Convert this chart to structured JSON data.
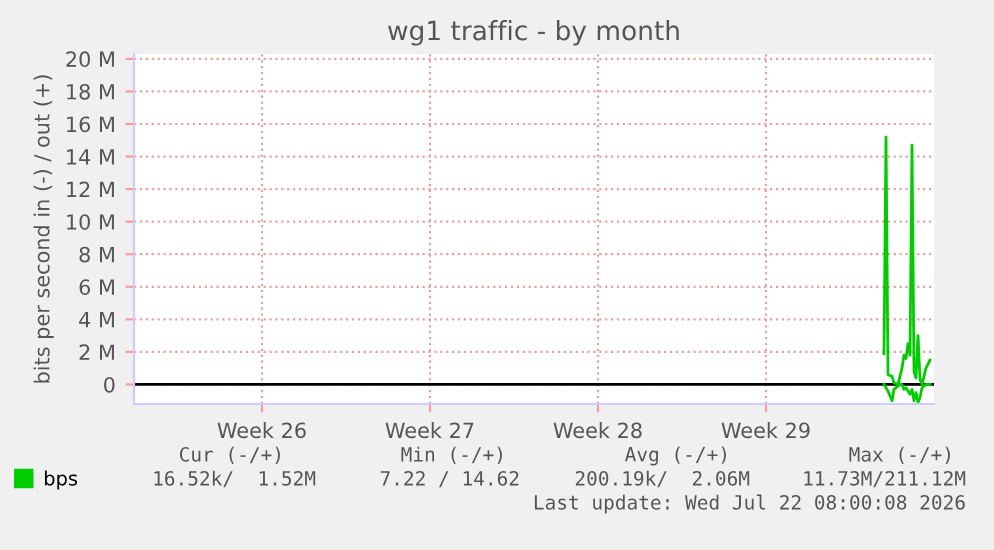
{
  "chart_data": {
    "type": "line",
    "title": "wg1 traffic - by month",
    "ylabel": "bits per second in (-) / out (+)",
    "x": [
      "2026-07-21T10:00",
      "2026-07-21T12:00",
      "2026-07-21T14:00",
      "2026-07-21T18:00",
      "2026-07-21T20:00",
      "2026-07-22T00:00",
      "2026-07-22T02:00",
      "2026-07-22T04:00",
      "2026-07-22T06:00",
      "2026-07-22T08:00",
      "2026-07-22T10:00",
      "2026-07-22T12:00",
      "2026-07-22T14:00",
      "2026-07-22T16:00",
      "2026-07-22T18:00",
      "2026-07-22T20:00",
      "2026-07-22T22:00",
      "2026-07-23T00:00",
      "2026-07-23T02:00",
      "2026-07-23T04:00",
      "2026-07-23T08:00"
    ],
    "series": [
      {
        "name": "bps",
        "color": "#00cc00",
        "values": [
          1900000,
          15200000,
          600000,
          500000,
          100000,
          0,
          500000,
          1000000,
          1800000,
          1600000,
          2500000,
          1800000,
          14700000,
          800000,
          400000,
          3000000,
          300000,
          0,
          500000,
          1000000,
          1500000
        ]
      },
      {
        "color": "#00cc00",
        "values": [
          0,
          -200000,
          -400000,
          -1000000,
          -300000,
          -100000,
          0,
          0,
          -300000,
          -200000,
          -400000,
          -600000,
          -300000,
          -1000000,
          -500000,
          -1100000,
          -800000,
          -200000,
          -100000,
          0,
          0
        ]
      }
    ],
    "xlim": [
      "2026-06-20T04:00",
      "2026-07-23T12:00"
    ],
    "xticks": [
      {
        "value": "2026-06-25T12:00",
        "label": "Week 26"
      },
      {
        "value": "2026-07-02T12:00",
        "label": "Week 27"
      },
      {
        "value": "2026-07-09T12:00",
        "label": "Week 28"
      },
      {
        "value": "2026-07-16T12:00",
        "label": "Week 29"
      }
    ],
    "ylim": [
      -1200000,
      20300000
    ],
    "yticks": [
      {
        "value": 0,
        "label": "0"
      },
      {
        "value": 2000000,
        "label": "2 M"
      },
      {
        "value": 4000000,
        "label": "4 M"
      },
      {
        "value": 6000000,
        "label": "6 M"
      },
      {
        "value": 8000000,
        "label": "8 M"
      },
      {
        "value": 10000000,
        "label": "10 M"
      },
      {
        "value": 12000000,
        "label": "12 M"
      },
      {
        "value": 14000000,
        "label": "14 M"
      },
      {
        "value": 16000000,
        "label": "16 M"
      },
      {
        "value": 18000000,
        "label": "18 M"
      },
      {
        "value": 20000000,
        "label": "20 M"
      }
    ],
    "ref_lines": [
      {
        "axis": "y",
        "value": 0,
        "color": "#000000"
      }
    ],
    "grid": true,
    "legend": "bottom",
    "marker": "none",
    "line_style": "solid",
    "annotations": [
      "Cur (-/+)",
      "Min (-/+)",
      "Avg (-/+)",
      "Max (-/+)",
      "16.52k/  1.52M",
      "7.22 / 14.62",
      "200.19k/  2.06M",
      "11.73M/211.12M",
      "Last update: Wed Jul 22 08:00:08 2026"
    ]
  }
}
